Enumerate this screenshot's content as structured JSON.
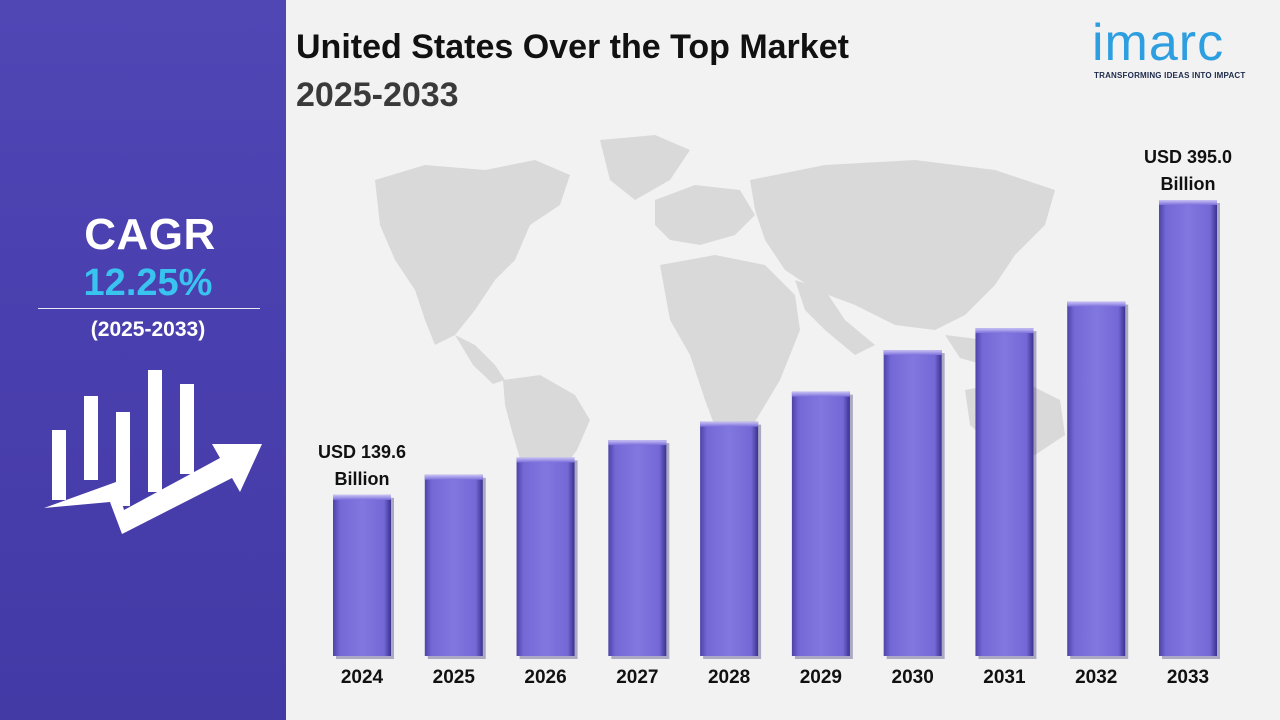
{
  "sidebar": {
    "cagr_label": "CAGR",
    "cagr_value": "12.25%",
    "cagr_period": "(2025-2033)"
  },
  "logo": {
    "word": "imarc",
    "tagline": "TRANSFORMING IDEAS INTO IMPACT"
  },
  "colors": {
    "sidebar": "#4a3fae",
    "cagr_value": "#39c4f0",
    "bar": "#7b6fdb",
    "logo": "#2d9fe0"
  },
  "chart_data": {
    "type": "bar",
    "title": "United States Over the Top Market",
    "subtitle": "2025-2033",
    "categories": [
      "2024",
      "2025",
      "2026",
      "2027",
      "2028",
      "2029",
      "2030",
      "2031",
      "2032",
      "2033"
    ],
    "values": [
      139.6,
      157,
      172,
      187,
      203,
      229,
      265,
      284,
      307,
      395.0
    ],
    "unit": "USD Billion",
    "ylim": [
      0,
      410
    ],
    "grid": false,
    "legend": "none",
    "annotations": [
      {
        "category": "2024",
        "line1": "USD 139.6",
        "line2": "Billion"
      },
      {
        "category": "2033",
        "line1": "USD 395.0",
        "line2": "Billion"
      }
    ]
  }
}
